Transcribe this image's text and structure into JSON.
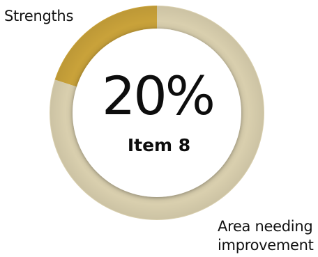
{
  "chart_data": {
    "type": "pie",
    "variant": "donut",
    "center_value": "20%",
    "center_label": "Item 8",
    "slices": [
      {
        "label": "Strengths",
        "value": 20,
        "color": "#c9a23a"
      },
      {
        "label": "Area needing\nimprovement",
        "value": 80,
        "color": "#d9cfae"
      }
    ],
    "start_angle": "top",
    "direction": "counterclockwise-from-top"
  }
}
